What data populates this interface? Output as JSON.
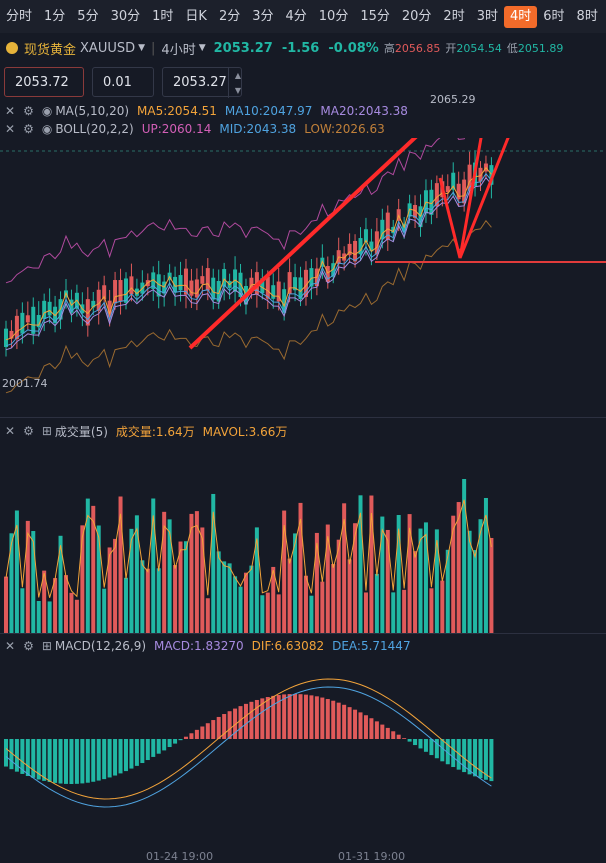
{
  "timeframes": [
    "分时",
    "1分",
    "5分",
    "30分",
    "1时",
    "日K",
    "2分",
    "3分",
    "4分",
    "10分",
    "15分",
    "20分",
    "2时",
    "3时",
    "4时",
    "6时",
    "8时"
  ],
  "active_timeframe": "4时",
  "header": {
    "name": "现货黄金",
    "code": "XAUUSD",
    "period": "4小时",
    "price": "2053.27",
    "change": "-1.56",
    "change_pct": "-0.08%",
    "high_label": "高",
    "high": "2056.85",
    "open_label": "开",
    "open": "2054.54",
    "low_label": "低",
    "low": "2051.89"
  },
  "order": {
    "sell_price": "2053.72",
    "qty": "0.01",
    "buy_price": "2053.27"
  },
  "ma": {
    "name": "MA(5,10,20)",
    "ma5": "MA5:2054.51",
    "ma10": "MA10:2047.97",
    "ma20": "MA20:2043.38"
  },
  "boll": {
    "name": "BOLL(20,2,2)",
    "up": "UP:2060.14",
    "mid": "MID:2043.38",
    "low": "LOW:2026.63"
  },
  "chart_marks": {
    "high_mark": "2065.29",
    "low_mark": "2001.74"
  },
  "volume": {
    "name": "成交量(5)",
    "vol": "成交量:1.64万",
    "mavol": "MAVOL:3.66万"
  },
  "macd": {
    "name": "MACD(12,26,9)",
    "macd": "MACD:1.83270",
    "dif": "DIF:6.63082",
    "dea": "DEA:5.71447"
  },
  "time_labels": [
    "01-24 19:00",
    "01-31 19:00"
  ],
  "colors": {
    "up": "#e05a5a",
    "down": "#21b7a4",
    "accent": "#f26b2a",
    "gold": "#e6b33a",
    "ma5": "#f2a33a",
    "ma10": "#4fa3e0",
    "ma20": "#a78be0"
  }
}
